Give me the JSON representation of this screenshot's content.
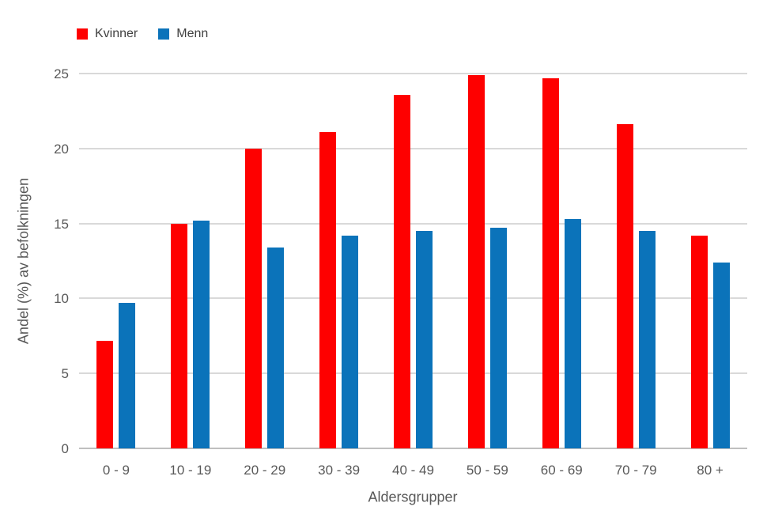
{
  "chart_data": {
    "type": "bar",
    "title": "",
    "xlabel": "Aldersgrupper",
    "ylabel": "Andel (%) av befolkningen",
    "ylim": [
      0,
      25
    ],
    "yticks": [
      0,
      5,
      10,
      15,
      20,
      25
    ],
    "grid": true,
    "legend_position": "top-left",
    "categories": [
      "0 - 9",
      "10 - 19",
      "20 - 29",
      "30 - 39",
      "40 - 49",
      "50 - 59",
      "60 - 69",
      "70 - 79",
      "80 +"
    ],
    "series": [
      {
        "name": "Kvinner",
        "color": "#fe0000",
        "values": [
          7.2,
          15.0,
          20.0,
          21.1,
          23.6,
          24.9,
          24.7,
          21.6,
          14.2
        ]
      },
      {
        "name": "Menn",
        "color": "#0b73ba",
        "values": [
          9.7,
          15.2,
          13.4,
          14.2,
          14.5,
          14.7,
          15.3,
          14.5,
          12.4
        ]
      }
    ]
  },
  "colors": {
    "axis_text": "#595959",
    "legend_text": "#404040",
    "gridline": "#d9d9d9",
    "baseline": "#bfbfbf",
    "background": "#ffffff"
  }
}
